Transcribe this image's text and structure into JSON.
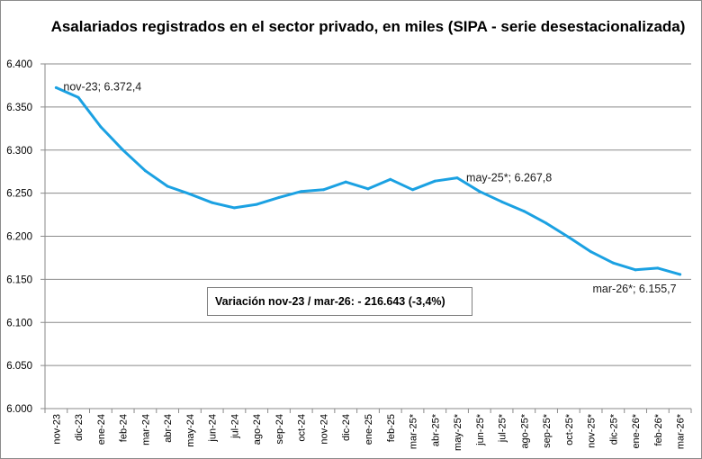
{
  "chart_data": {
    "type": "line",
    "title": "Asalariados registrados en el sector privado, en miles (SIPA - serie desestacionalizada)",
    "categories": [
      "nov-23",
      "dic-23",
      "ene-24",
      "feb-24",
      "mar-24",
      "abr-24",
      "may-24",
      "jun-24",
      "jul-24",
      "ago-24",
      "sep-24",
      "oct-24",
      "nov-24",
      "dic-24",
      "ene-25",
      "feb-25",
      "mar-25*",
      "abr-25*",
      "may-25*",
      "jun-25*",
      "jul-25*",
      "ago-25*",
      "sep-25*",
      "oct-25*",
      "nov-25*",
      "dic-25*",
      "ene-26*",
      "feb-26*",
      "mar-26*"
    ],
    "series": [
      {
        "values": [
          6372.4,
          6361,
          6327,
          6300,
          6276,
          6258,
          6249,
          6239,
          6233,
          6237,
          6245,
          6252,
          6254,
          6263,
          6255,
          6266,
          6254,
          6264,
          6267.8,
          6252,
          6240,
          6229,
          6215,
          6199,
          6182,
          6169,
          6161,
          6163,
          6155.7
        ],
        "color": "#1ba1e2"
      }
    ],
    "ylim": [
      6000,
      6400
    ],
    "yticks": [
      6000,
      6050,
      6100,
      6150,
      6200,
      6250,
      6300,
      6350,
      6400
    ],
    "ytick_labels": [
      "6.000",
      "6.050",
      "6.100",
      "6.150",
      "6.200",
      "6.250",
      "6.300",
      "6.350",
      "6.400"
    ],
    "grid": "horizontal",
    "annotations": [
      {
        "index": 0,
        "text": "nov-23; 6.372,4"
      },
      {
        "index": 18,
        "text": "may-25*; 6.267,8"
      },
      {
        "index": 28,
        "text": "mar-26*; 6.155,7"
      }
    ],
    "variation_note": "Variación nov-23 / mar-26: - 216.643 (-3,4%)"
  }
}
